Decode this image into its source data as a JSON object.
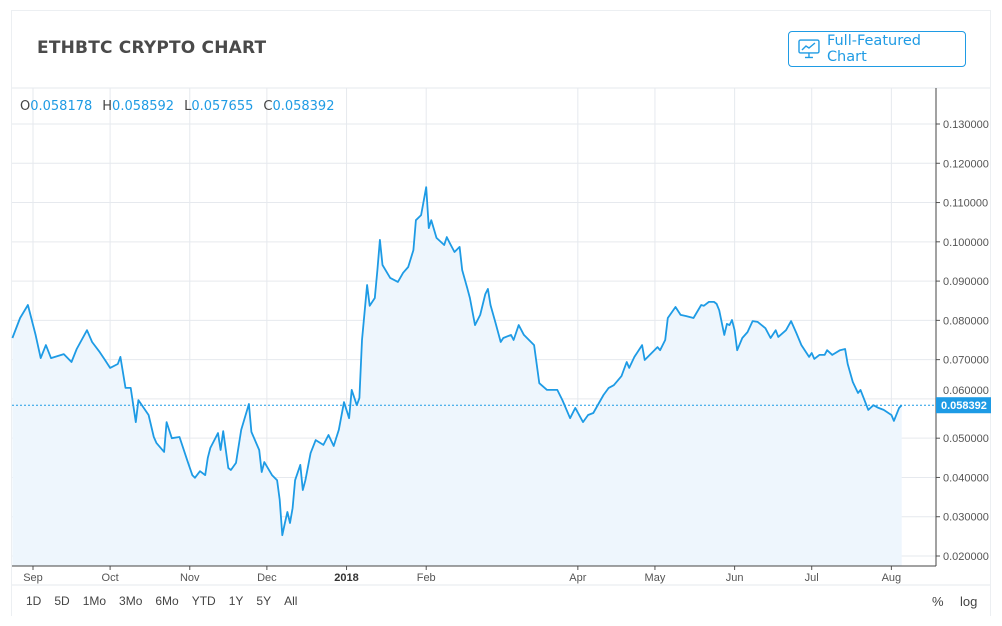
{
  "header": {
    "title": "ETHBTC CRYPTO CHART",
    "full_chart_button": "Full-Featured Chart",
    "full_chart_icon": "chart-monitor-icon"
  },
  "ohlc": {
    "open_label": "O",
    "open": "0.058178",
    "high_label": "H",
    "high": "0.058592",
    "low_label": "L",
    "low": "0.057655",
    "close_label": "C",
    "close": "0.058392"
  },
  "colors": {
    "line": "#1e9be5",
    "fill": "#eef6fd",
    "accent": "#1f9be4",
    "price_label_bg": "#1e9be5"
  },
  "range_buttons": [
    "1D",
    "5D",
    "1Mo",
    "3Mo",
    "6Mo",
    "YTD",
    "1Y",
    "5Y",
    "All"
  ],
  "scale_buttons": {
    "percent": "%",
    "log": "log"
  },
  "chart_data": {
    "type": "area",
    "grid": true,
    "ylim": [
      0.02,
      0.13
    ],
    "y_ticks": [
      "0.130000",
      "0.120000",
      "0.110000",
      "0.100000",
      "0.090000",
      "0.080000",
      "0.070000",
      "0.060000",
      "0.050000",
      "0.040000",
      "0.030000",
      "0.020000"
    ],
    "x_ticks": [
      {
        "label": "Sep",
        "date": "2017-09-01"
      },
      {
        "label": "Oct",
        "date": "2017-10-01"
      },
      {
        "label": "Nov",
        "date": "2017-11-01"
      },
      {
        "label": "Dec",
        "date": "2017-12-01"
      },
      {
        "label": "2018",
        "date": "2018-01-01",
        "bold": true
      },
      {
        "label": "Feb",
        "date": "2018-02-01"
      },
      {
        "label": "Apr",
        "date": "2018-04-01"
      },
      {
        "label": "May",
        "date": "2018-05-01"
      },
      {
        "label": "Jun",
        "date": "2018-06-01"
      },
      {
        "label": "Jul",
        "date": "2018-07-01"
      },
      {
        "label": "Aug",
        "date": "2018-08-01"
      }
    ],
    "last_price": 0.058392,
    "last_price_label": "0.058392",
    "points": [
      [
        "2017-08-24",
        0.0755
      ],
      [
        "2017-08-27",
        0.0806
      ],
      [
        "2017-08-30",
        0.0839
      ],
      [
        "2017-09-02",
        0.0763
      ],
      [
        "2017-09-04",
        0.0704
      ],
      [
        "2017-09-06",
        0.0737
      ],
      [
        "2017-09-08",
        0.0704
      ],
      [
        "2017-09-13",
        0.0714
      ],
      [
        "2017-09-16",
        0.0694
      ],
      [
        "2017-09-18",
        0.0727
      ],
      [
        "2017-09-22",
        0.0775
      ],
      [
        "2017-09-24",
        0.0745
      ],
      [
        "2017-09-27",
        0.0719
      ],
      [
        "2017-09-29",
        0.0699
      ],
      [
        "2017-10-01",
        0.0679
      ],
      [
        "2017-10-04",
        0.0689
      ],
      [
        "2017-10-05",
        0.0707
      ],
      [
        "2017-10-07",
        0.0628
      ],
      [
        "2017-10-09",
        0.0628
      ],
      [
        "2017-10-11",
        0.0541
      ],
      [
        "2017-10-12",
        0.0597
      ],
      [
        "2017-10-16",
        0.0559
      ],
      [
        "2017-10-18",
        0.0503
      ],
      [
        "2017-10-19",
        0.0488
      ],
      [
        "2017-10-22",
        0.0465
      ],
      [
        "2017-10-23",
        0.0541
      ],
      [
        "2017-10-25",
        0.05
      ],
      [
        "2017-10-28",
        0.0503
      ],
      [
        "2017-10-31",
        0.0444
      ],
      [
        "2017-11-02",
        0.0406
      ],
      [
        "2017-11-03",
        0.0399
      ],
      [
        "2017-11-05",
        0.0416
      ],
      [
        "2017-11-07",
        0.0406
      ],
      [
        "2017-11-08",
        0.045
      ],
      [
        "2017-11-09",
        0.0475
      ],
      [
        "2017-11-12",
        0.0513
      ],
      [
        "2017-11-13",
        0.047
      ],
      [
        "2017-11-14",
        0.0518
      ],
      [
        "2017-11-16",
        0.0424
      ],
      [
        "2017-11-17",
        0.0419
      ],
      [
        "2017-11-19",
        0.0437
      ],
      [
        "2017-11-21",
        0.0521
      ],
      [
        "2017-11-24",
        0.0587
      ],
      [
        "2017-11-25",
        0.0516
      ],
      [
        "2017-11-28",
        0.047
      ],
      [
        "2017-11-29",
        0.0414
      ],
      [
        "2017-11-30",
        0.0439
      ],
      [
        "2017-12-03",
        0.0406
      ],
      [
        "2017-12-05",
        0.0393
      ],
      [
        "2017-12-06",
        0.0343
      ],
      [
        "2017-12-07",
        0.0253
      ],
      [
        "2017-12-08",
        0.0284
      ],
      [
        "2017-12-09",
        0.0312
      ],
      [
        "2017-12-10",
        0.0284
      ],
      [
        "2017-12-11",
        0.0322
      ],
      [
        "2017-12-12",
        0.0393
      ],
      [
        "2017-12-14",
        0.0432
      ],
      [
        "2017-12-15",
        0.0368
      ],
      [
        "2017-12-16",
        0.0393
      ],
      [
        "2017-12-18",
        0.0462
      ],
      [
        "2017-12-20",
        0.0495
      ],
      [
        "2017-12-23",
        0.0483
      ],
      [
        "2017-12-25",
        0.0508
      ],
      [
        "2017-12-27",
        0.048
      ],
      [
        "2017-12-29",
        0.0521
      ],
      [
        "2017-12-31",
        0.0592
      ],
      [
        "2018-01-02",
        0.0551
      ],
      [
        "2018-01-03",
        0.0623
      ],
      [
        "2018-01-05",
        0.0584
      ],
      [
        "2018-01-06",
        0.0602
      ],
      [
        "2018-01-07",
        0.075
      ],
      [
        "2018-01-09",
        0.089
      ],
      [
        "2018-01-10",
        0.0837
      ],
      [
        "2018-01-12",
        0.0857
      ],
      [
        "2018-01-13",
        0.0928
      ],
      [
        "2018-01-14",
        0.1005
      ],
      [
        "2018-01-15",
        0.0941
      ],
      [
        "2018-01-18",
        0.0908
      ],
      [
        "2018-01-21",
        0.0898
      ],
      [
        "2018-01-23",
        0.0921
      ],
      [
        "2018-01-25",
        0.0936
      ],
      [
        "2018-01-27",
        0.0979
      ],
      [
        "2018-01-28",
        0.1055
      ],
      [
        "2018-01-30",
        0.1068
      ],
      [
        "2018-02-01",
        0.1139
      ],
      [
        "2018-02-02",
        0.1035
      ],
      [
        "2018-02-03",
        0.1055
      ],
      [
        "2018-02-05",
        0.101
      ],
      [
        "2018-02-08",
        0.0992
      ],
      [
        "2018-02-09",
        0.1012
      ],
      [
        "2018-02-10",
        0.0999
      ],
      [
        "2018-02-12",
        0.0974
      ],
      [
        "2018-02-14",
        0.0987
      ],
      [
        "2018-02-15",
        0.0928
      ],
      [
        "2018-02-17",
        0.0882
      ],
      [
        "2018-02-18",
        0.0857
      ],
      [
        "2018-02-20",
        0.0788
      ],
      [
        "2018-02-22",
        0.0814
      ],
      [
        "2018-02-24",
        0.0867
      ],
      [
        "2018-02-25",
        0.088
      ],
      [
        "2018-02-26",
        0.0839
      ],
      [
        "2018-02-28",
        0.0793
      ],
      [
        "2018-03-02",
        0.0745
      ],
      [
        "2018-03-03",
        0.0755
      ],
      [
        "2018-03-06",
        0.0763
      ],
      [
        "2018-03-07",
        0.075
      ],
      [
        "2018-03-09",
        0.0788
      ],
      [
        "2018-03-11",
        0.0763
      ],
      [
        "2018-03-15",
        0.0737
      ],
      [
        "2018-03-17",
        0.064
      ],
      [
        "2018-03-20",
        0.0623
      ],
      [
        "2018-03-24",
        0.0623
      ],
      [
        "2018-03-26",
        0.0597
      ],
      [
        "2018-03-29",
        0.0551
      ],
      [
        "2018-03-31",
        0.0577
      ],
      [
        "2018-04-03",
        0.0541
      ],
      [
        "2018-04-05",
        0.0559
      ],
      [
        "2018-04-07",
        0.0564
      ],
      [
        "2018-04-11",
        0.061
      ],
      [
        "2018-04-13",
        0.0628
      ],
      [
        "2018-04-15",
        0.0635
      ],
      [
        "2018-04-18",
        0.0658
      ],
      [
        "2018-04-20",
        0.0694
      ],
      [
        "2018-04-21",
        0.0679
      ],
      [
        "2018-04-23",
        0.0707
      ],
      [
        "2018-04-26",
        0.0737
      ],
      [
        "2018-04-27",
        0.0699
      ],
      [
        "2018-04-29",
        0.0712
      ],
      [
        "2018-05-02",
        0.0732
      ],
      [
        "2018-05-03",
        0.0724
      ],
      [
        "2018-05-05",
        0.075
      ],
      [
        "2018-05-06",
        0.0806
      ],
      [
        "2018-05-09",
        0.0834
      ],
      [
        "2018-05-11",
        0.0814
      ],
      [
        "2018-05-13",
        0.0811
      ],
      [
        "2018-05-16",
        0.0806
      ],
      [
        "2018-05-19",
        0.0839
      ],
      [
        "2018-05-20",
        0.0837
      ],
      [
        "2018-05-22",
        0.0847
      ],
      [
        "2018-05-24",
        0.0847
      ],
      [
        "2018-05-25",
        0.0842
      ],
      [
        "2018-05-26",
        0.0826
      ],
      [
        "2018-05-28",
        0.0763
      ],
      [
        "2018-05-29",
        0.0791
      ],
      [
        "2018-05-30",
        0.0788
      ],
      [
        "2018-05-31",
        0.0801
      ],
      [
        "2018-06-01",
        0.0775
      ],
      [
        "2018-06-02",
        0.0724
      ],
      [
        "2018-06-04",
        0.0755
      ],
      [
        "2018-06-06",
        0.077
      ],
      [
        "2018-06-08",
        0.0798
      ],
      [
        "2018-06-10",
        0.0796
      ],
      [
        "2018-06-13",
        0.078
      ],
      [
        "2018-06-15",
        0.0755
      ],
      [
        "2018-06-17",
        0.0775
      ],
      [
        "2018-06-18",
        0.0758
      ],
      [
        "2018-06-21",
        0.0775
      ],
      [
        "2018-06-23",
        0.0798
      ],
      [
        "2018-06-25",
        0.0768
      ],
      [
        "2018-06-27",
        0.0737
      ],
      [
        "2018-06-30",
        0.0707
      ],
      [
        "2018-07-01",
        0.0717
      ],
      [
        "2018-07-02",
        0.0702
      ],
      [
        "2018-07-04",
        0.0712
      ],
      [
        "2018-07-06",
        0.0712
      ],
      [
        "2018-07-07",
        0.0724
      ],
      [
        "2018-07-09",
        0.0712
      ],
      [
        "2018-07-12",
        0.0724
      ],
      [
        "2018-07-14",
        0.0727
      ],
      [
        "2018-07-15",
        0.0689
      ],
      [
        "2018-07-17",
        0.0643
      ],
      [
        "2018-07-19",
        0.0615
      ],
      [
        "2018-07-20",
        0.0623
      ],
      [
        "2018-07-23",
        0.0572
      ],
      [
        "2018-07-25",
        0.0584
      ],
      [
        "2018-07-27",
        0.0577
      ],
      [
        "2018-07-29",
        0.0572
      ],
      [
        "2018-08-01",
        0.0559
      ],
      [
        "2018-08-02",
        0.0544
      ],
      [
        "2018-08-04",
        0.0577
      ],
      [
        "2018-08-05",
        0.058392
      ]
    ]
  }
}
